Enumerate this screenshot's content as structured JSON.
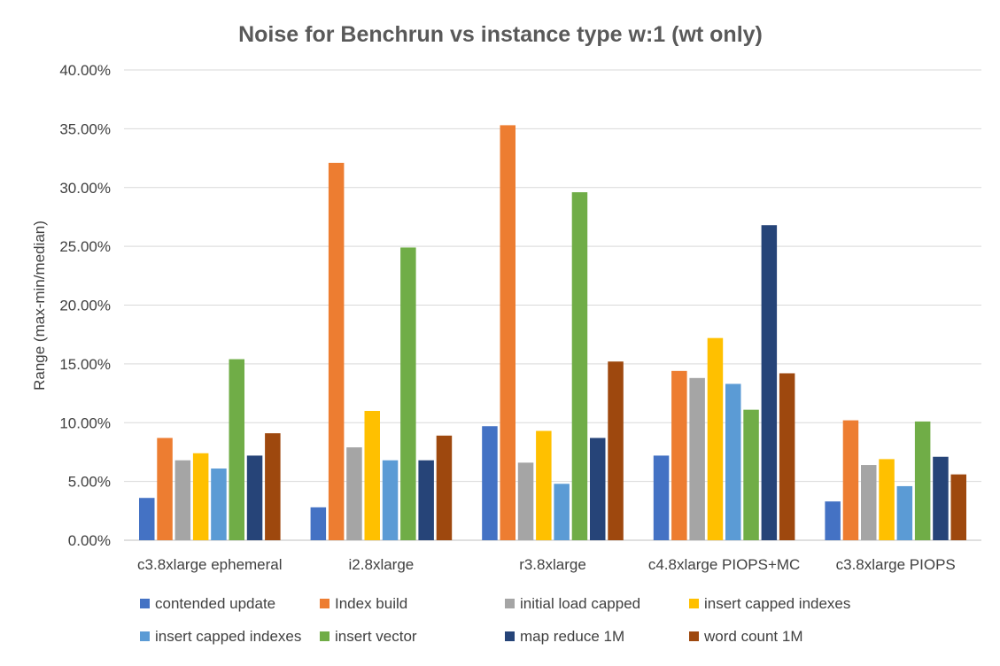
{
  "chart_data": {
    "type": "bar",
    "title": "Noise for Benchrun vs instance type w:1 (wt only)",
    "xlabel": "",
    "ylabel": "Range (max-min/median)",
    "ylim": [
      0,
      40
    ],
    "yticks": [
      "0.00%",
      "5.00%",
      "10.00%",
      "15.00%",
      "20.00%",
      "25.00%",
      "30.00%",
      "35.00%",
      "40.00%"
    ],
    "grid": true,
    "legend_position": "bottom",
    "categories": [
      "c3.8xlarge ephemeral",
      "i2.8xlarge",
      "r3.8xlarge",
      "c4.8xlarge PIOPS+MC",
      "c3.8xlarge PIOPS"
    ],
    "series": [
      {
        "name": "contended update",
        "color": "#4472c4",
        "values": [
          3.6,
          2.8,
          9.7,
          7.2,
          3.3
        ]
      },
      {
        "name": "Index build",
        "color": "#ed7d31",
        "values": [
          8.7,
          32.1,
          35.3,
          14.4,
          10.2
        ]
      },
      {
        "name": "initial load capped",
        "color": "#a5a5a5",
        "values": [
          6.8,
          7.9,
          6.6,
          13.8,
          6.4
        ]
      },
      {
        "name": "insert capped indexes",
        "color": "#ffc000",
        "values": [
          7.4,
          11.0,
          9.3,
          17.2,
          6.9
        ]
      },
      {
        "name": "insert capped indexes",
        "color": "#5b9bd5",
        "values": [
          6.1,
          6.8,
          4.8,
          13.3,
          4.6
        ]
      },
      {
        "name": "insert vector",
        "color": "#70ad47",
        "values": [
          15.4,
          24.9,
          29.6,
          11.1,
          10.1
        ]
      },
      {
        "name": "map reduce 1M",
        "color": "#264478",
        "values": [
          7.2,
          6.8,
          8.7,
          26.8,
          7.1
        ]
      },
      {
        "name": "word count 1M",
        "color": "#9e480e",
        "values": [
          9.1,
          8.9,
          15.2,
          14.2,
          5.6
        ]
      }
    ]
  }
}
